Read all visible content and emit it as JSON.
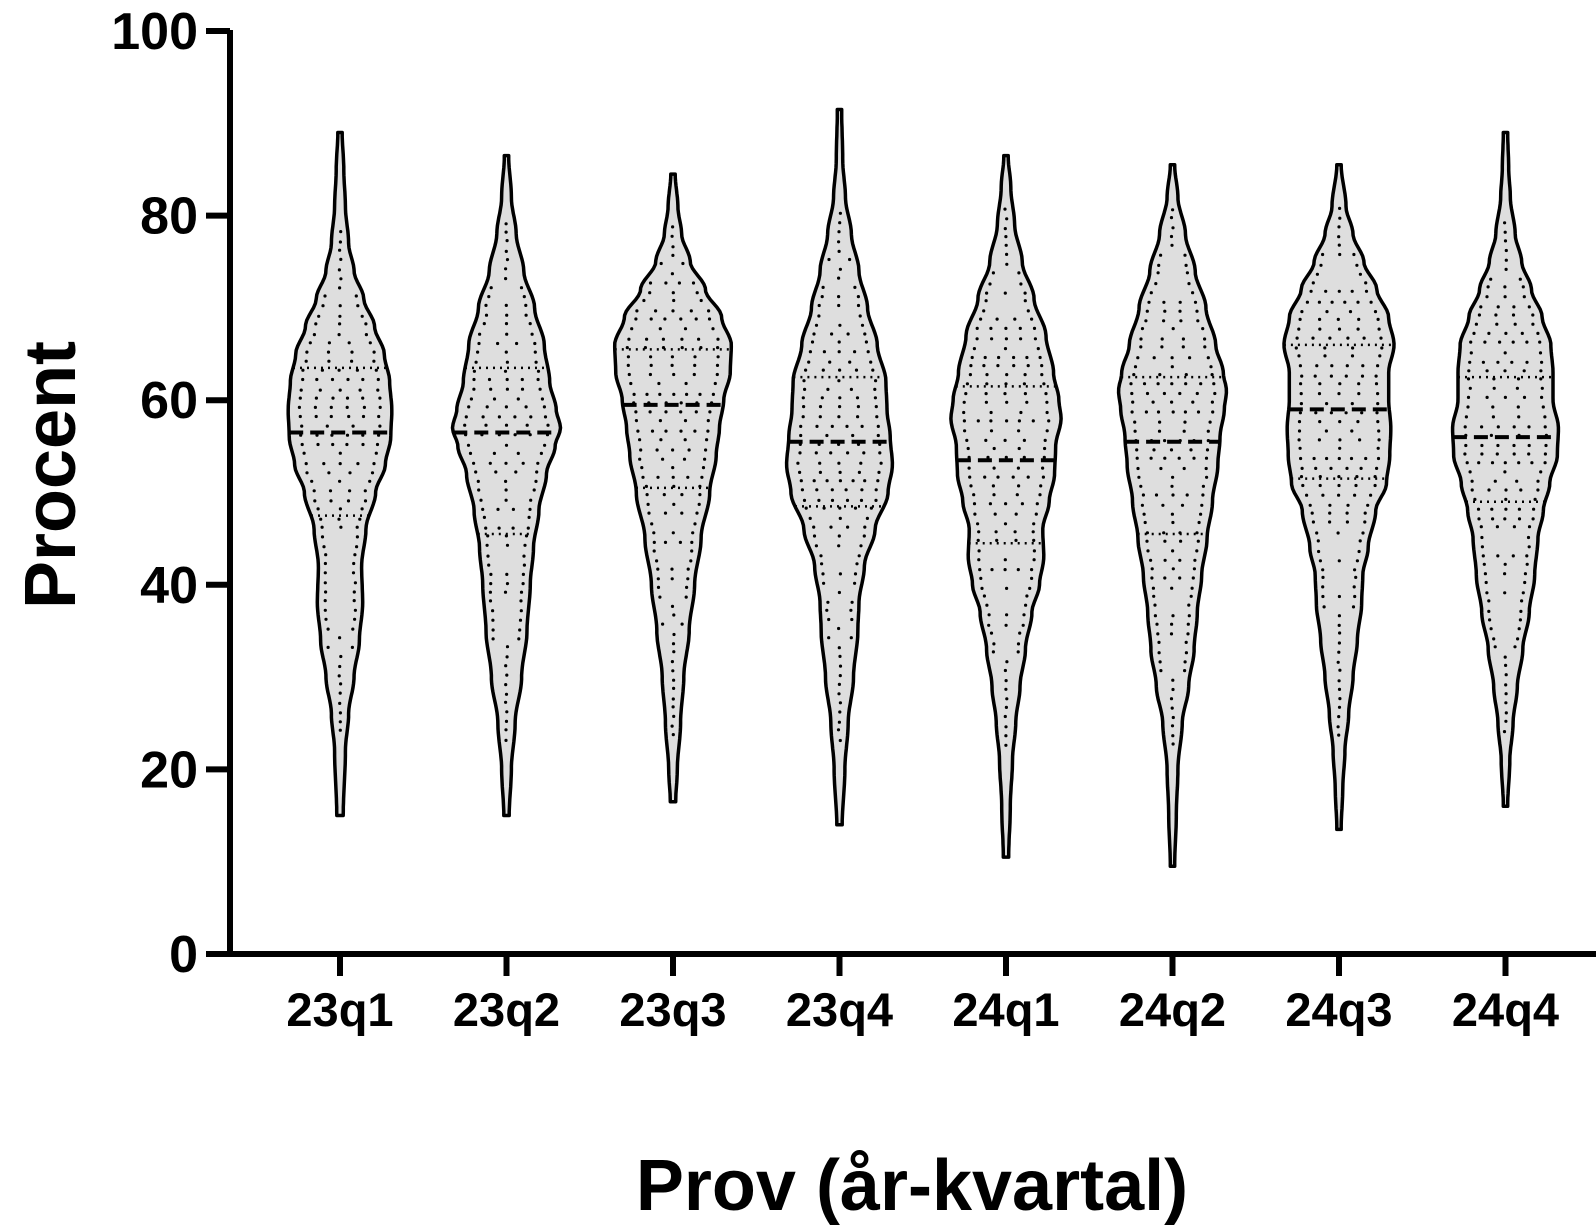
{
  "chart_data": {
    "type": "violin",
    "xlabel": "Prov (år-kvartal)",
    "ylabel": "Procent",
    "ylim": [
      0,
      100
    ],
    "yticks": [
      0,
      20,
      40,
      60,
      80,
      100
    ],
    "categories": [
      "23q1",
      "23q2",
      "23q3",
      "23q4",
      "24q1",
      "24q2",
      "24q3",
      "24q4"
    ],
    "violins": [
      {
        "name": "23q1",
        "min": 15,
        "max": 89,
        "q1": 47.5,
        "median": 56.5,
        "q3": 63.5,
        "profile": [
          [
            15,
            0.3
          ],
          [
            22,
            0.5
          ],
          [
            26,
            0.8
          ],
          [
            30,
            1.3
          ],
          [
            34,
            1.8
          ],
          [
            38,
            2.1
          ],
          [
            42,
            2.0
          ],
          [
            46,
            2.4
          ],
          [
            50,
            3.3
          ],
          [
            53,
            4.2
          ],
          [
            56,
            4.7
          ],
          [
            59,
            4.8
          ],
          [
            62,
            4.6
          ],
          [
            65,
            4.1
          ],
          [
            68,
            3.2
          ],
          [
            71,
            2.2
          ],
          [
            74,
            1.3
          ],
          [
            77,
            0.8
          ],
          [
            81,
            0.5
          ],
          [
            85,
            0.35
          ],
          [
            89,
            0.2
          ]
        ]
      },
      {
        "name": "23q2",
        "min": 15,
        "max": 86.5,
        "q1": 45.5,
        "median": 56.5,
        "q3": 63.5,
        "profile": [
          [
            15,
            0.25
          ],
          [
            20,
            0.45
          ],
          [
            25,
            0.8
          ],
          [
            30,
            1.4
          ],
          [
            35,
            1.9
          ],
          [
            40,
            2.2
          ],
          [
            44,
            2.5
          ],
          [
            48,
            3.0
          ],
          [
            52,
            3.7
          ],
          [
            55,
            4.5
          ],
          [
            57,
            5.0
          ],
          [
            59,
            4.6
          ],
          [
            62,
            4.0
          ],
          [
            66,
            3.5
          ],
          [
            70,
            2.6
          ],
          [
            74,
            1.6
          ],
          [
            78,
            0.9
          ],
          [
            82,
            0.45
          ],
          [
            86.5,
            0.2
          ]
        ]
      },
      {
        "name": "23q3",
        "min": 16.5,
        "max": 84.5,
        "q1": 50.5,
        "median": 59.5,
        "q3": 65.5,
        "profile": [
          [
            16.5,
            0.25
          ],
          [
            20,
            0.4
          ],
          [
            25,
            0.7
          ],
          [
            30,
            1.0
          ],
          [
            35,
            1.5
          ],
          [
            40,
            2.0
          ],
          [
            45,
            2.6
          ],
          [
            50,
            3.4
          ],
          [
            54,
            4.0
          ],
          [
            57,
            4.3
          ],
          [
            60,
            4.7
          ],
          [
            63,
            5.3
          ],
          [
            66,
            5.4
          ],
          [
            69,
            4.5
          ],
          [
            72,
            3.0
          ],
          [
            75,
            1.6
          ],
          [
            78,
            0.8
          ],
          [
            81,
            0.45
          ],
          [
            84.5,
            0.2
          ]
        ]
      },
      {
        "name": "23q4",
        "min": 14,
        "max": 91.5,
        "q1": 48.5,
        "median": 55.5,
        "q3": 62.5,
        "profile": [
          [
            14,
            0.25
          ],
          [
            20,
            0.5
          ],
          [
            25,
            0.8
          ],
          [
            30,
            1.3
          ],
          [
            35,
            1.7
          ],
          [
            38,
            1.8
          ],
          [
            42,
            2.3
          ],
          [
            46,
            3.3
          ],
          [
            50,
            4.5
          ],
          [
            53,
            4.9
          ],
          [
            56,
            4.7
          ],
          [
            59,
            4.4
          ],
          [
            62,
            4.3
          ],
          [
            66,
            3.5
          ],
          [
            70,
            2.6
          ],
          [
            74,
            1.8
          ],
          [
            78,
            1.1
          ],
          [
            82,
            0.55
          ],
          [
            86,
            0.3
          ],
          [
            91.5,
            0.2
          ]
        ]
      },
      {
        "name": "24q1",
        "min": 10.5,
        "max": 86.5,
        "q1": 44.5,
        "median": 53.5,
        "q3": 61.5,
        "profile": [
          [
            10.5,
            0.25
          ],
          [
            16,
            0.4
          ],
          [
            21,
            0.6
          ],
          [
            25,
            0.9
          ],
          [
            29,
            1.3
          ],
          [
            33,
            1.8
          ],
          [
            37,
            2.4
          ],
          [
            40,
            3.1
          ],
          [
            43,
            3.5
          ],
          [
            46,
            3.4
          ],
          [
            49,
            4.0
          ],
          [
            52,
            4.5
          ],
          [
            55,
            4.6
          ],
          [
            58,
            5.1
          ],
          [
            60,
            4.9
          ],
          [
            63,
            4.4
          ],
          [
            67,
            3.7
          ],
          [
            71,
            2.6
          ],
          [
            75,
            1.5
          ],
          [
            79,
            0.8
          ],
          [
            83,
            0.45
          ],
          [
            86.5,
            0.2
          ]
        ]
      },
      {
        "name": "24q2",
        "min": 9.5,
        "max": 85.5,
        "q1": 45.5,
        "median": 55.5,
        "q3": 62.5,
        "profile": [
          [
            9.5,
            0.2
          ],
          [
            15,
            0.35
          ],
          [
            20,
            0.5
          ],
          [
            25,
            0.9
          ],
          [
            29,
            1.5
          ],
          [
            33,
            2.0
          ],
          [
            37,
            2.3
          ],
          [
            41,
            2.7
          ],
          [
            45,
            3.2
          ],
          [
            49,
            3.7
          ],
          [
            53,
            4.2
          ],
          [
            56,
            4.4
          ],
          [
            59,
            4.8
          ],
          [
            61,
            5.0
          ],
          [
            63,
            4.7
          ],
          [
            66,
            4.0
          ],
          [
            70,
            3.1
          ],
          [
            74,
            2.1
          ],
          [
            78,
            1.2
          ],
          [
            82,
            0.5
          ],
          [
            85.5,
            0.2
          ]
        ]
      },
      {
        "name": "24q3",
        "min": 13.5,
        "max": 85.5,
        "q1": 51.5,
        "median": 59,
        "q3": 66,
        "profile": [
          [
            13.5,
            0.2
          ],
          [
            18,
            0.35
          ],
          [
            22,
            0.55
          ],
          [
            26,
            0.9
          ],
          [
            30,
            1.3
          ],
          [
            34,
            1.7
          ],
          [
            38,
            2.1
          ],
          [
            41,
            2.2
          ],
          [
            44,
            2.7
          ],
          [
            48,
            3.4
          ],
          [
            51,
            4.4
          ],
          [
            54,
            4.7
          ],
          [
            57,
            4.8
          ],
          [
            60,
            4.6
          ],
          [
            63,
            4.6
          ],
          [
            66,
            5.1
          ],
          [
            69,
            4.6
          ],
          [
            72,
            3.5
          ],
          [
            75,
            2.3
          ],
          [
            78,
            1.3
          ],
          [
            81,
            0.65
          ],
          [
            85.5,
            0.2
          ]
        ]
      },
      {
        "name": "24q4",
        "min": 16,
        "max": 89,
        "q1": 49,
        "median": 56,
        "q3": 62.5,
        "profile": [
          [
            16,
            0.2
          ],
          [
            21,
            0.4
          ],
          [
            25,
            0.7
          ],
          [
            29,
            1.1
          ],
          [
            33,
            1.6
          ],
          [
            37,
            2.2
          ],
          [
            41,
            2.7
          ],
          [
            45,
            3.0
          ],
          [
            48,
            3.5
          ],
          [
            51,
            4.1
          ],
          [
            54,
            4.8
          ],
          [
            57,
            4.9
          ],
          [
            60,
            4.4
          ],
          [
            63,
            4.4
          ],
          [
            66,
            4.2
          ],
          [
            69,
            3.4
          ],
          [
            72,
            2.4
          ],
          [
            75,
            1.5
          ],
          [
            78,
            0.9
          ],
          [
            82,
            0.45
          ],
          [
            85,
            0.3
          ],
          [
            89,
            0.2
          ]
        ]
      }
    ]
  }
}
